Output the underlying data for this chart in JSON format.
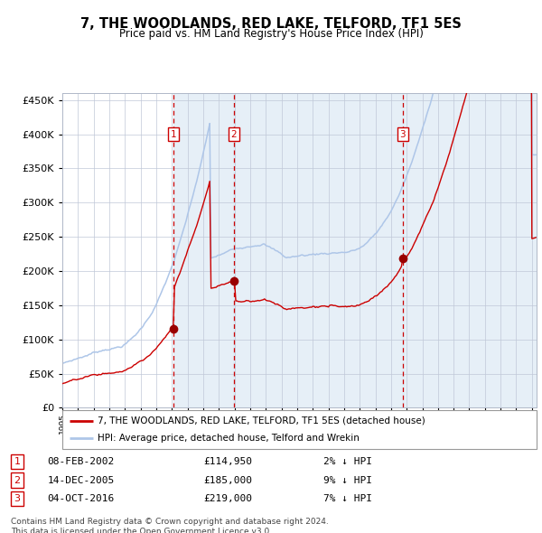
{
  "title": "7, THE WOODLANDS, RED LAKE, TELFORD, TF1 5ES",
  "subtitle": "Price paid vs. HM Land Registry's House Price Index (HPI)",
  "hpi_color": "#aec6e8",
  "sale_color": "#cc0000",
  "bg_color": "#dce9f5",
  "plot_bg": "#ffffff",
  "ylim": [
    0,
    460000
  ],
  "yticks": [
    0,
    50000,
    100000,
    150000,
    200000,
    250000,
    300000,
    350000,
    400000,
    450000
  ],
  "sale_years": [
    2002.1,
    2005.96,
    2016.75
  ],
  "sale_prices": [
    114950,
    185000,
    219000
  ],
  "sale_dates_iso": [
    "08-FEB-2002",
    "14-DEC-2005",
    "04-OCT-2016"
  ],
  "sale_prices_str": [
    "£114,950",
    "£185,000",
    "£219,000"
  ],
  "sale_hpi_pct": [
    "2% ↓ HPI",
    "9% ↓ HPI",
    "7% ↓ HPI"
  ],
  "legend_sale_label": "7, THE WOODLANDS, RED LAKE, TELFORD, TF1 5ES (detached house)",
  "legend_hpi_label": "HPI: Average price, detached house, Telford and Wrekin",
  "footer": "Contains HM Land Registry data © Crown copyright and database right 2024.\nThis data is licensed under the Open Government Licence v3.0.",
  "dashed_line_color": "#cc0000",
  "marker_color": "#990000",
  "xmin": 1995,
  "xmax": 2025.3
}
